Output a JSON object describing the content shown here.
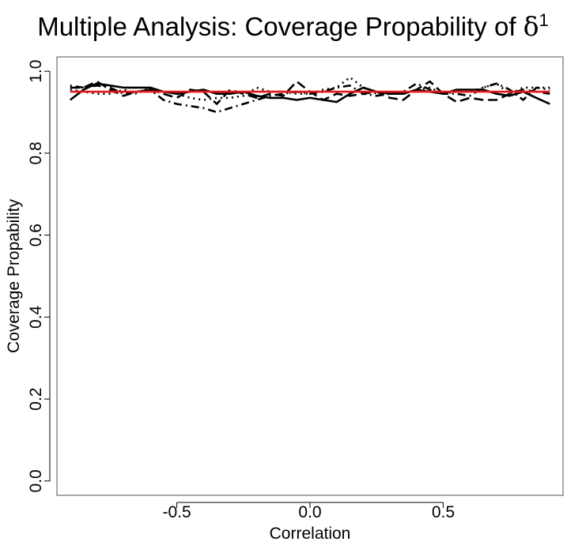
{
  "chart_data": {
    "type": "line",
    "title": {
      "main": "Multiple Analysis: Coverage Propability of ",
      "symbol": "δ",
      "superscript": "1"
    },
    "xlabel": "Correlation",
    "ylabel": "Coverage Propability",
    "xlim": [
      -0.95,
      0.95
    ],
    "ylim": [
      -0.035,
      1.035
    ],
    "xticks": [
      -0.5,
      0.0,
      0.5
    ],
    "xtick_labels": [
      "-0.5",
      "0.0",
      "0.5"
    ],
    "yticks": [
      0.0,
      0.2,
      0.4,
      0.6,
      0.8,
      1.0
    ],
    "ytick_labels": [
      "0.0",
      "0.2",
      "0.4",
      "0.6",
      "0.8",
      "1.0"
    ],
    "grid": false,
    "legend": "none",
    "x": [
      -0.9,
      -0.85,
      -0.8,
      -0.75,
      -0.7,
      -0.65,
      -0.6,
      -0.55,
      -0.5,
      -0.45,
      -0.4,
      -0.35,
      -0.3,
      -0.25,
      -0.2,
      -0.15,
      -0.1,
      -0.05,
      0.0,
      0.05,
      0.1,
      0.15,
      0.2,
      0.25,
      0.3,
      0.35,
      0.4,
      0.45,
      0.5,
      0.55,
      0.6,
      0.65,
      0.7,
      0.75,
      0.8,
      0.85,
      0.9
    ],
    "reference_line": {
      "y": 0.95,
      "color": "#e31a1c"
    },
    "series": [
      {
        "style": "solid",
        "values": [
          0.93,
          0.955,
          0.97,
          0.965,
          0.96,
          0.96,
          0.96,
          0.95,
          0.945,
          0.95,
          0.955,
          0.945,
          0.945,
          0.95,
          0.94,
          0.935,
          0.935,
          0.93,
          0.935,
          0.93,
          0.925,
          0.945,
          0.96,
          0.95,
          0.945,
          0.945,
          0.955,
          0.95,
          0.945,
          0.955,
          0.955,
          0.955,
          0.945,
          0.94,
          0.95,
          0.935,
          0.92
        ]
      },
      {
        "style": "dashed",
        "values": [
          0.96,
          0.96,
          0.975,
          0.955,
          0.94,
          0.95,
          0.955,
          0.945,
          0.935,
          0.955,
          0.95,
          0.92,
          0.955,
          0.945,
          0.935,
          0.945,
          0.94,
          0.975,
          0.95,
          0.93,
          0.945,
          0.94,
          0.945,
          0.95,
          0.935,
          0.93,
          0.955,
          0.975,
          0.945,
          0.925,
          0.935,
          0.93,
          0.93,
          0.945,
          0.955,
          0.95,
          0.945
        ]
      },
      {
        "style": "dotted",
        "values": [
          0.955,
          0.95,
          0.945,
          0.945,
          0.955,
          0.945,
          0.96,
          0.95,
          0.945,
          0.935,
          0.93,
          0.935,
          0.935,
          0.94,
          0.96,
          0.95,
          0.95,
          0.945,
          0.945,
          0.955,
          0.96,
          0.985,
          0.96,
          0.945,
          0.95,
          0.945,
          0.955,
          0.96,
          0.945,
          0.95,
          0.95,
          0.96,
          0.97,
          0.945,
          0.96,
          0.96,
          0.96
        ]
      },
      {
        "style": "dotdash",
        "values": [
          0.965,
          0.96,
          0.965,
          0.96,
          0.945,
          0.95,
          0.955,
          0.93,
          0.92,
          0.915,
          0.91,
          0.9,
          0.91,
          0.92,
          0.93,
          0.94,
          0.945,
          0.95,
          0.945,
          0.95,
          0.96,
          0.965,
          0.945,
          0.94,
          0.945,
          0.95,
          0.97,
          0.955,
          0.945,
          0.945,
          0.94,
          0.96,
          0.97,
          0.955,
          0.93,
          0.96,
          0.955
        ]
      }
    ]
  }
}
